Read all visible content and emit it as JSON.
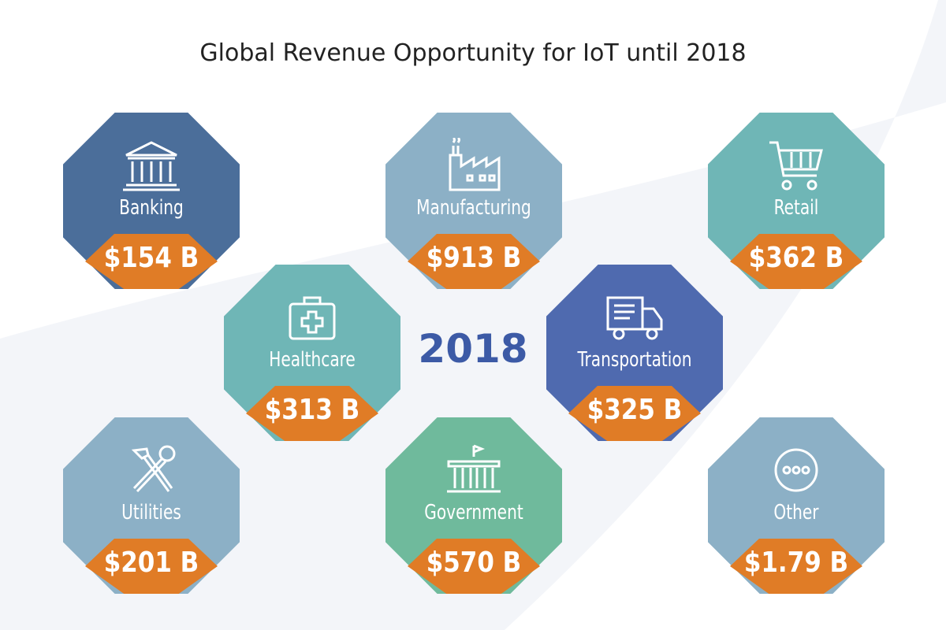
{
  "title": "Global Revenue Opportunity for IoT until 2018",
  "center_year": "2018",
  "colors": {
    "banking": "#4b6e9a",
    "manufacturing": "#8cb0c6",
    "retail": "#6fb6b6",
    "healthcare": "#6fb6b6",
    "transportation": "#4f6aaf",
    "utilities": "#8cb0c6",
    "government": "#6fba9c",
    "other": "#8cb0c6",
    "accent_orange": "#e07c26",
    "year_blue": "#3c5aa6"
  },
  "tiles": {
    "banking": {
      "label": "Banking",
      "value": "$154 B",
      "icon": "bank-icon"
    },
    "manufacturing": {
      "label": "Manufacturing",
      "value": "$913 B",
      "icon": "factory-icon"
    },
    "retail": {
      "label": "Retail",
      "value": "$362 B",
      "icon": "shopping-cart-icon"
    },
    "healthcare": {
      "label": "Healthcare",
      "value": "$313 B",
      "icon": "medical-kit-icon"
    },
    "transportation": {
      "label": "Transportation",
      "value": "$325 B",
      "icon": "truck-icon"
    },
    "utilities": {
      "label": "Utilities",
      "value": "$201 B",
      "icon": "tools-icon"
    },
    "government": {
      "label": "Government",
      "value": "$570 B",
      "icon": "government-building-icon"
    },
    "other": {
      "label": "Other",
      "value": "$1.79 B",
      "icon": "more-dots-icon"
    }
  }
}
